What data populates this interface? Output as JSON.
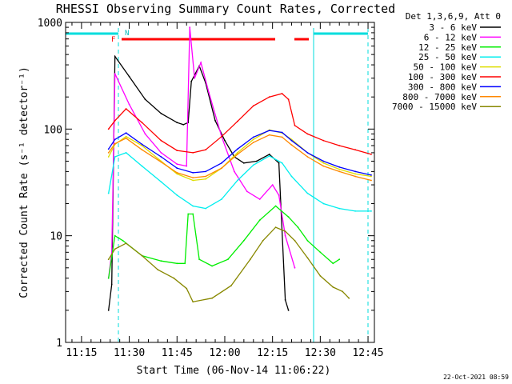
{
  "chart_data": {
    "type": "line",
    "title": "RHESSI Observing Summary Count Rates, Corrected",
    "xlabel": "Start Time (06-Nov-14 11:06:22)",
    "ylabel": "Corrected Count Rate (s⁻¹ detector⁻¹)",
    "y_scale": "log",
    "ylim": [
      1,
      1000
    ],
    "xlim_minutes": [
      4.0,
      101.0
    ],
    "x_ticks": [
      {
        "m": 9,
        "label": "11:15"
      },
      {
        "m": 24,
        "label": "11:30"
      },
      {
        "m": 39,
        "label": "11:45"
      },
      {
        "m": 54,
        "label": "12:00"
      },
      {
        "m": 69,
        "label": "12:15"
      },
      {
        "m": 84,
        "label": "12:30"
      },
      {
        "m": 99,
        "label": "12:45"
      }
    ],
    "y_ticks": [
      {
        "v": 1,
        "label": "1"
      },
      {
        "v": 10,
        "label": "10"
      },
      {
        "v": 100,
        "label": "100"
      },
      {
        "v": 1000,
        "label": "1000"
      }
    ],
    "legend_header": "Det 1,3,6,9, Att 0",
    "legend_placement": "right",
    "series": [
      {
        "name": "3 - 6 keV",
        "color": "#000000",
        "points": [
          [
            17.5,
            2
          ],
          [
            18.5,
            3.5
          ],
          [
            19.5,
            480
          ],
          [
            24,
            310
          ],
          [
            29,
            190
          ],
          [
            34,
            140
          ],
          [
            39,
            115
          ],
          [
            41,
            110
          ],
          [
            42.5,
            115
          ],
          [
            43.5,
            280
          ],
          [
            46,
            390
          ],
          [
            48,
            270
          ],
          [
            51,
            120
          ],
          [
            54,
            78
          ],
          [
            57,
            55
          ],
          [
            60,
            48
          ],
          [
            64,
            50
          ],
          [
            68,
            58
          ],
          [
            71,
            48
          ],
          [
            73,
            2.5
          ],
          [
            74,
            2
          ]
        ]
      },
      {
        "name": "6 - 12 keV",
        "color": "#ff00ff",
        "points": [
          [
            17.5,
            4
          ],
          [
            18.5,
            7
          ],
          [
            19.5,
            330
          ],
          [
            24,
            170
          ],
          [
            29,
            90
          ],
          [
            34,
            60
          ],
          [
            39,
            47
          ],
          [
            42,
            45
          ],
          [
            43,
            900
          ],
          [
            44.5,
            300
          ],
          [
            46.5,
            420
          ],
          [
            49,
            220
          ],
          [
            53,
            85
          ],
          [
            57,
            40
          ],
          [
            61,
            26
          ],
          [
            65,
            22
          ],
          [
            69,
            30
          ],
          [
            71,
            24
          ],
          [
            73,
            10
          ],
          [
            76,
            5
          ]
        ]
      },
      {
        "name": "12 - 25 keV",
        "color": "#00ee00",
        "points": [
          [
            17.5,
            4
          ],
          [
            19.5,
            10
          ],
          [
            22,
            9
          ],
          [
            28,
            6.5
          ],
          [
            34,
            5.8
          ],
          [
            39,
            5.5
          ],
          [
            41.5,
            5.5
          ],
          [
            42.5,
            16
          ],
          [
            44,
            16
          ],
          [
            46,
            6
          ],
          [
            50,
            5.2
          ],
          [
            55,
            6
          ],
          [
            60,
            9
          ],
          [
            65,
            14
          ],
          [
            70,
            19
          ],
          [
            74,
            15
          ],
          [
            77,
            12
          ],
          [
            80,
            9
          ],
          [
            84,
            7
          ],
          [
            88,
            5.5
          ],
          [
            90,
            6
          ]
        ]
      },
      {
        "name": "25 - 50 keV",
        "color": "#00eeee",
        "points": [
          [
            17.5,
            25
          ],
          [
            19.5,
            55
          ],
          [
            23,
            60
          ],
          [
            28,
            45
          ],
          [
            34,
            32
          ],
          [
            39,
            24
          ],
          [
            44,
            19
          ],
          [
            48,
            18
          ],
          [
            53,
            22
          ],
          [
            58,
            33
          ],
          [
            63,
            46
          ],
          [
            68,
            56
          ],
          [
            72,
            48
          ],
          [
            75,
            36
          ],
          [
            80,
            25
          ],
          [
            85,
            20
          ],
          [
            90,
            18
          ],
          [
            95,
            17
          ],
          [
            100,
            17
          ]
        ]
      },
      {
        "name": "50 - 100 keV",
        "color": "#dddd00",
        "points": [
          [
            17.5,
            55
          ],
          [
            19.5,
            72
          ],
          [
            23,
            85
          ],
          [
            28,
            70
          ],
          [
            34,
            50
          ],
          [
            39,
            38
          ],
          [
            44,
            33
          ],
          [
            48,
            34
          ],
          [
            53,
            43
          ],
          [
            58,
            60
          ],
          [
            63,
            80
          ],
          [
            68,
            98
          ],
          [
            72,
            92
          ],
          [
            75,
            80
          ],
          [
            80,
            60
          ],
          [
            85,
            48
          ],
          [
            90,
            42
          ],
          [
            95,
            38
          ],
          [
            100,
            36
          ]
        ]
      },
      {
        "name": "100 - 300 keV",
        "color": "#ff0000",
        "points": [
          [
            17.5,
            100
          ],
          [
            19.5,
            120
          ],
          [
            23,
            155
          ],
          [
            28,
            115
          ],
          [
            34,
            78
          ],
          [
            39,
            63
          ],
          [
            44,
            60
          ],
          [
            48,
            64
          ],
          [
            53,
            85
          ],
          [
            58,
            118
          ],
          [
            63,
            165
          ],
          [
            68,
            200
          ],
          [
            72,
            215
          ],
          [
            74,
            190
          ],
          [
            76,
            108
          ],
          [
            80,
            90
          ],
          [
            85,
            78
          ],
          [
            90,
            70
          ],
          [
            95,
            64
          ],
          [
            100,
            58
          ]
        ]
      },
      {
        "name": "300 - 800 keV",
        "color": "#0000ff",
        "points": [
          [
            17.5,
            65
          ],
          [
            19.5,
            80
          ],
          [
            23,
            92
          ],
          [
            28,
            72
          ],
          [
            34,
            55
          ],
          [
            39,
            43
          ],
          [
            44,
            39
          ],
          [
            48,
            40
          ],
          [
            53,
            48
          ],
          [
            58,
            65
          ],
          [
            63,
            84
          ],
          [
            68,
            97
          ],
          [
            72,
            93
          ],
          [
            75,
            78
          ],
          [
            80,
            60
          ],
          [
            85,
            50
          ],
          [
            90,
            44
          ],
          [
            95,
            40
          ],
          [
            100,
            37
          ]
        ]
      },
      {
        "name": "800 - 7000 keV",
        "color": "#ff8800",
        "points": [
          [
            17.5,
            60
          ],
          [
            19.5,
            73
          ],
          [
            23,
            82
          ],
          [
            28,
            64
          ],
          [
            34,
            49
          ],
          [
            39,
            39
          ],
          [
            44,
            35
          ],
          [
            48,
            36
          ],
          [
            53,
            43
          ],
          [
            58,
            58
          ],
          [
            63,
            75
          ],
          [
            68,
            88
          ],
          [
            72,
            84
          ],
          [
            75,
            71
          ],
          [
            80,
            55
          ],
          [
            85,
            45
          ],
          [
            90,
            40
          ],
          [
            95,
            36
          ],
          [
            100,
            33
          ]
        ]
      },
      {
        "name": "7000 - 15000 keV",
        "color": "#888800",
        "points": [
          [
            17.5,
            6
          ],
          [
            19.5,
            7.5
          ],
          [
            23,
            8.5
          ],
          [
            28,
            6.5
          ],
          [
            33,
            4.8
          ],
          [
            38,
            4
          ],
          [
            42,
            3.2
          ],
          [
            44,
            2.4
          ],
          [
            50,
            2.6
          ],
          [
            56,
            3.4
          ],
          [
            62,
            6
          ],
          [
            66,
            9
          ],
          [
            70,
            12
          ],
          [
            73,
            11
          ],
          [
            76,
            9
          ],
          [
            80,
            6.2
          ],
          [
            84,
            4.2
          ],
          [
            88,
            3.3
          ],
          [
            91,
            3
          ],
          [
            93,
            2.6
          ]
        ]
      }
    ],
    "annotations": [
      {
        "label": "N",
        "color": "#00cccc"
      },
      {
        "label": "F",
        "color": "#ff0000"
      }
    ]
  },
  "footer": {
    "timestamp": "22-Oct-2021 08:59"
  }
}
